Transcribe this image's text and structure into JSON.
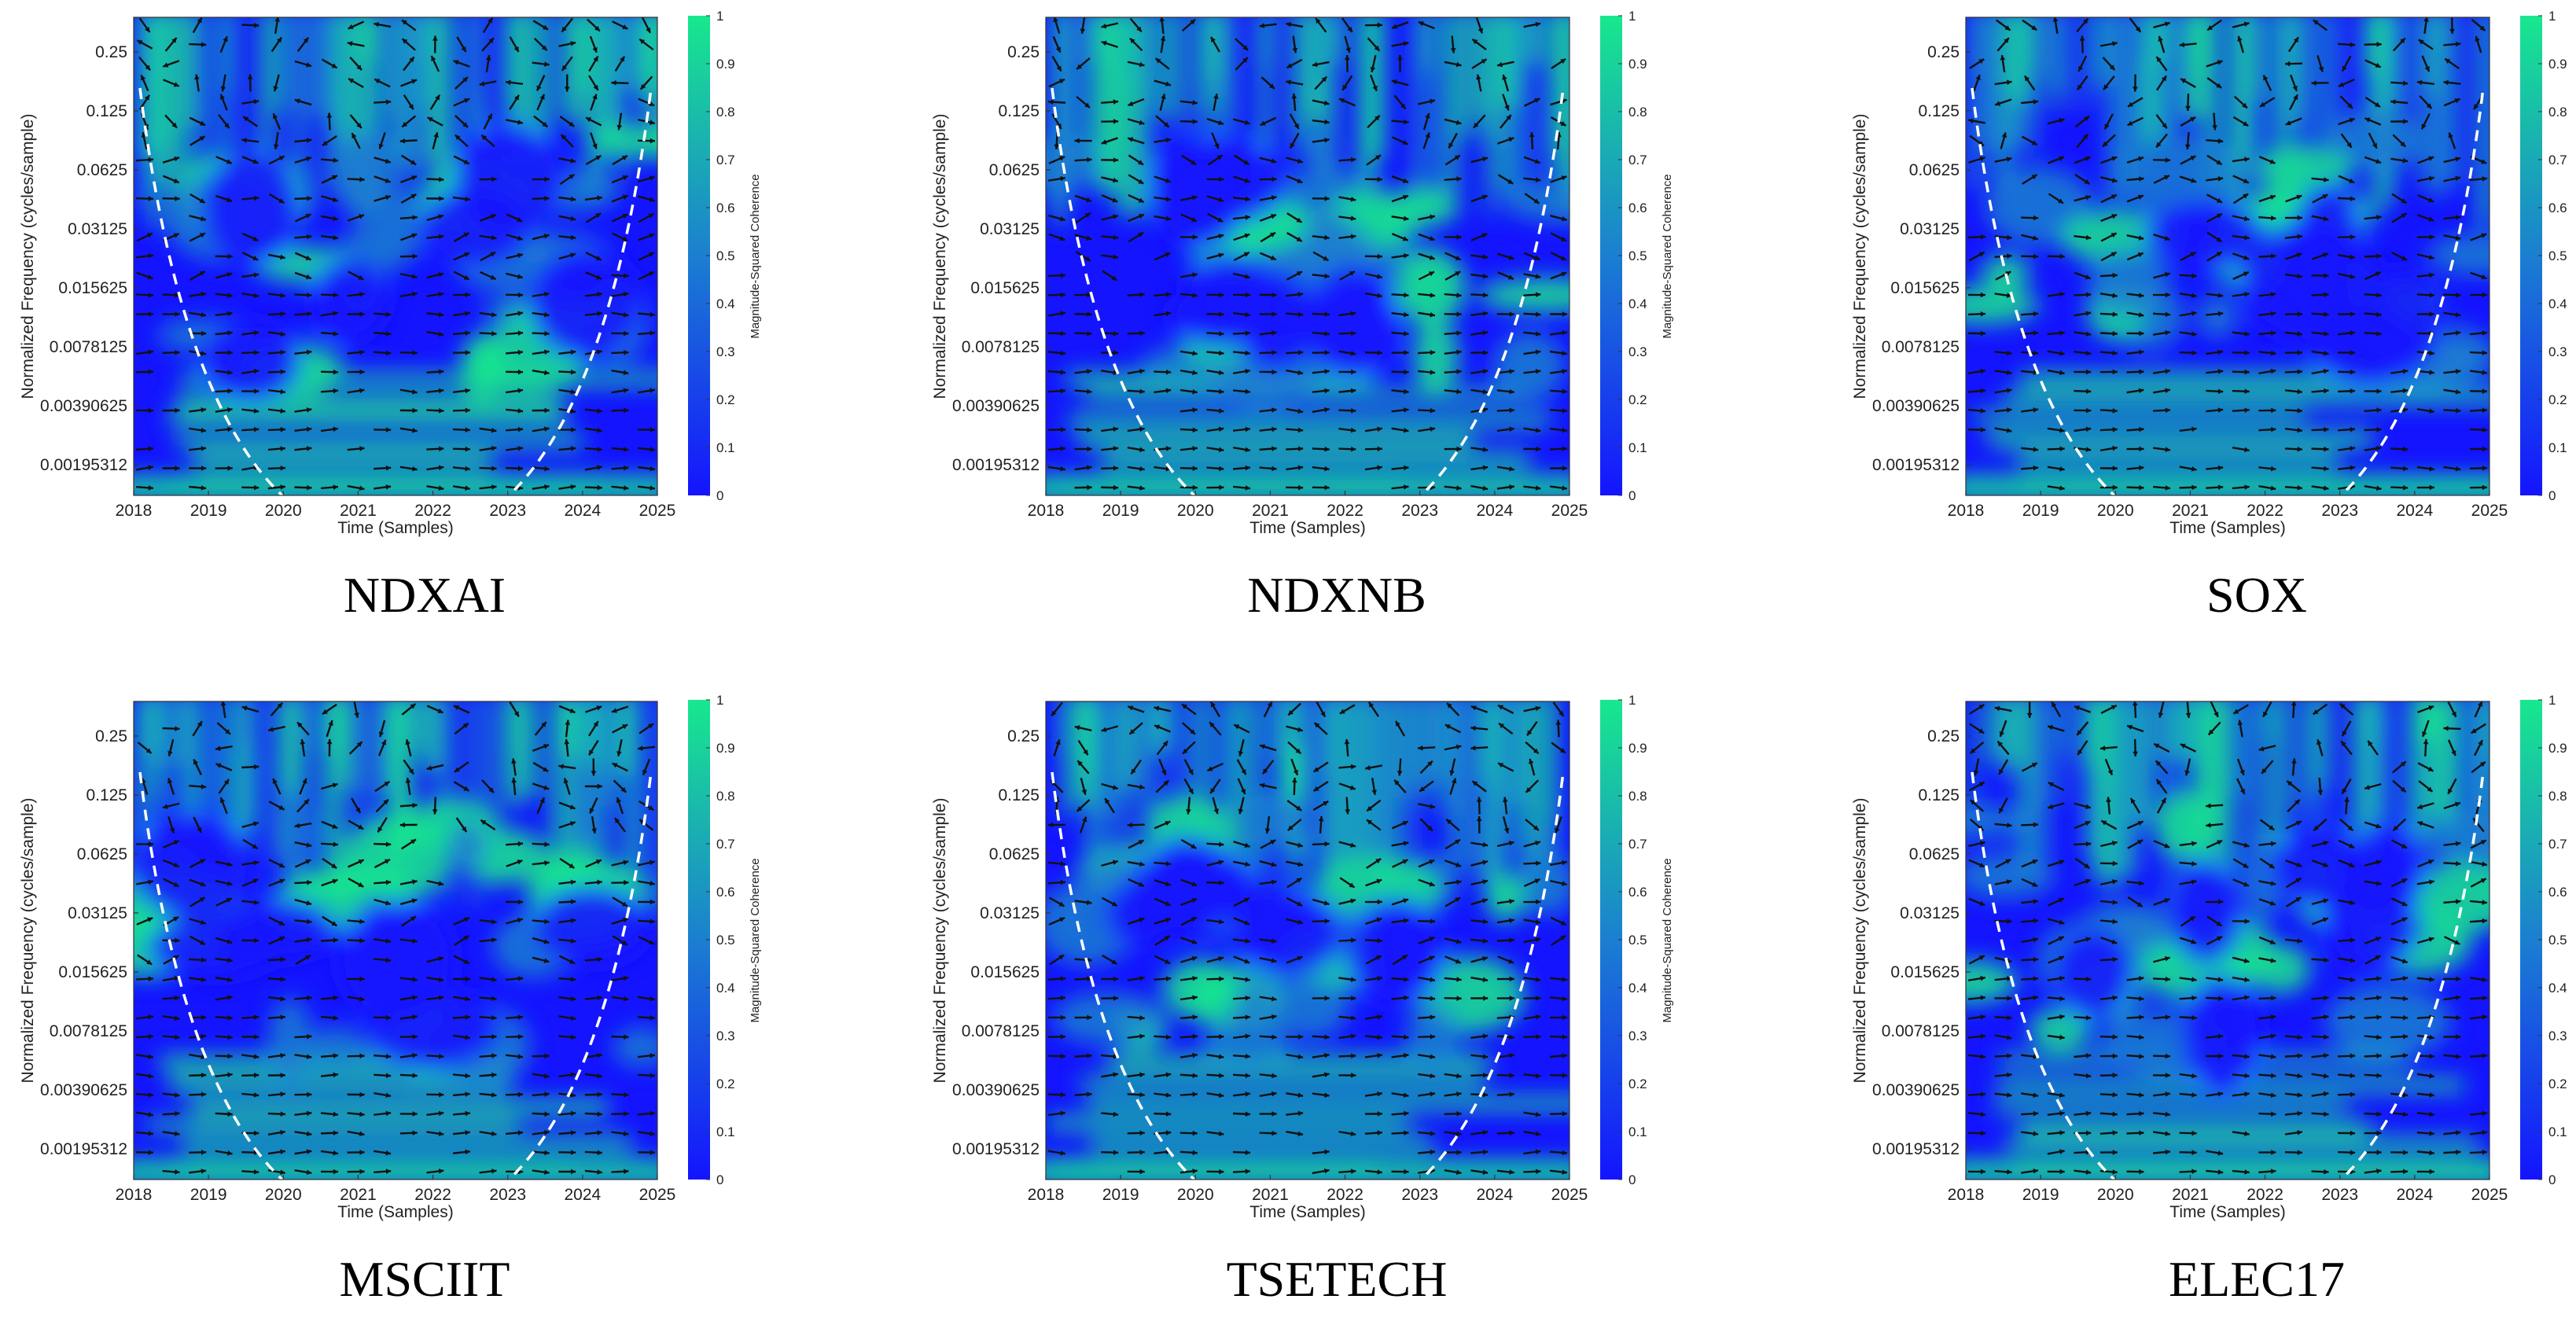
{
  "figure": {
    "shared": {
      "ylabel": "Normalized Frequency  (cycles/sample)",
      "xlabel": "Time (Samples)",
      "colorbar_label": "Magnitude-Squared Coherence",
      "colors": {
        "low": "#1414ff",
        "mid": "#1b7fd0",
        "high": "#18e88e",
        "coi": "#ffffff",
        "arrow": "#111111"
      }
    }
  },
  "chart_data": [
    {
      "type": "heatmap",
      "title": "NDXAI",
      "xlabel": "Time (Samples)",
      "ylabel": "Normalized Frequency  (cycles/sample)",
      "x_ticks": [
        "2018",
        "2019",
        "2020",
        "2021",
        "2022",
        "2023",
        "2024",
        "2025"
      ],
      "y_ticks": [
        "0.25",
        "0.125",
        "0.0625",
        "0.03125",
        "0.015625",
        "0.0078125",
        "0.00390625",
        "0.00195312"
      ],
      "colorbar_ticks": [
        "0",
        "0.1",
        "0.2",
        "0.3",
        "0.4",
        "0.5",
        "0.6",
        "0.7",
        "0.8",
        "0.9",
        "1"
      ],
      "colorbar_label": "Magnitude-Squared Coherence",
      "zlim": [
        0,
        1
      ],
      "cone_of_influence": true,
      "phase_arrows": true
    },
    {
      "type": "heatmap",
      "title": "NDXNB",
      "xlabel": "Time (Samples)",
      "ylabel": "Normalized Frequency  (cycles/sample)",
      "x_ticks": [
        "2018",
        "2019",
        "2020",
        "2021",
        "2022",
        "2023",
        "2024",
        "2025"
      ],
      "y_ticks": [
        "0.25",
        "0.125",
        "0.0625",
        "0.03125",
        "0.015625",
        "0.0078125",
        "0.00390625",
        "0.00195312"
      ],
      "colorbar_ticks": [
        "0",
        "0.1",
        "0.2",
        "0.3",
        "0.4",
        "0.5",
        "0.6",
        "0.7",
        "0.8",
        "0.9",
        "1"
      ],
      "colorbar_label": "Magnitude-Squared Coherence",
      "zlim": [
        0,
        1
      ],
      "cone_of_influence": true,
      "phase_arrows": true
    },
    {
      "type": "heatmap",
      "title": "SOX",
      "xlabel": "Time (Samples)",
      "ylabel": "Normalized Frequency  (cycles/sample)",
      "x_ticks": [
        "2018",
        "2019",
        "2020",
        "2021",
        "2022",
        "2023",
        "2024",
        "2025"
      ],
      "y_ticks": [
        "0.25",
        "0.125",
        "0.0625",
        "0.03125",
        "0.015625",
        "0.0078125",
        "0.00390625",
        "0.00195312"
      ],
      "colorbar_ticks": [
        "0",
        "0.1",
        "0.2",
        "0.3",
        "0.4",
        "0.5",
        "0.6",
        "0.7",
        "0.8",
        "0.9",
        "1"
      ],
      "colorbar_label": "Magnitude-Squared Coherence",
      "zlim": [
        0,
        1
      ],
      "cone_of_influence": true,
      "phase_arrows": true
    },
    {
      "type": "heatmap",
      "title": "MSCIIT",
      "xlabel": "Time (Samples)",
      "ylabel": "Normalized Frequency  (cycles/sample)",
      "x_ticks": [
        "2018",
        "2019",
        "2020",
        "2021",
        "2022",
        "2023",
        "2024",
        "2025"
      ],
      "y_ticks": [
        "0.25",
        "0.125",
        "0.0625",
        "0.03125",
        "0.015625",
        "0.0078125",
        "0.00390625",
        "0.00195312"
      ],
      "colorbar_ticks": [
        "0",
        "0.1",
        "0.2",
        "0.3",
        "0.4",
        "0.5",
        "0.6",
        "0.7",
        "0.8",
        "0.9",
        "1"
      ],
      "colorbar_label": "Magnitude-Squared Coherence",
      "zlim": [
        0,
        1
      ],
      "cone_of_influence": true,
      "phase_arrows": true
    },
    {
      "type": "heatmap",
      "title": "TSETECH",
      "xlabel": "Time (Samples)",
      "ylabel": "Normalized Frequency  (cycles/sample)",
      "x_ticks": [
        "2018",
        "2019",
        "2020",
        "2021",
        "2022",
        "2023",
        "2024",
        "2025"
      ],
      "y_ticks": [
        "0.25",
        "0.125",
        "0.0625",
        "0.03125",
        "0.015625",
        "0.0078125",
        "0.00390625",
        "0.00195312"
      ],
      "colorbar_ticks": [
        "0",
        "0.1",
        "0.2",
        "0.3",
        "0.4",
        "0.5",
        "0.6",
        "0.7",
        "0.8",
        "0.9",
        "1"
      ],
      "colorbar_label": "Magnitude-Squared Coherence",
      "zlim": [
        0,
        1
      ],
      "cone_of_influence": true,
      "phase_arrows": true
    },
    {
      "type": "heatmap",
      "title": "ELEC17",
      "xlabel": "Time (Samples)",
      "ylabel": "Normalized Frequency  (cycles/sample)",
      "x_ticks": [
        "2018",
        "2019",
        "2020",
        "2021",
        "2022",
        "2023",
        "2024",
        "2025"
      ],
      "y_ticks": [
        "0.25",
        "0.125",
        "0.0625",
        "0.03125",
        "0.015625",
        "0.0078125",
        "0.00390625",
        "0.00195312"
      ],
      "colorbar_ticks": [
        "0",
        "0.1",
        "0.2",
        "0.3",
        "0.4",
        "0.5",
        "0.6",
        "0.7",
        "0.8",
        "0.9",
        "1"
      ],
      "colorbar_label": "Magnitude-Squared Coherence",
      "zlim": [
        0,
        1
      ],
      "cone_of_influence": true,
      "phase_arrows": true
    }
  ]
}
